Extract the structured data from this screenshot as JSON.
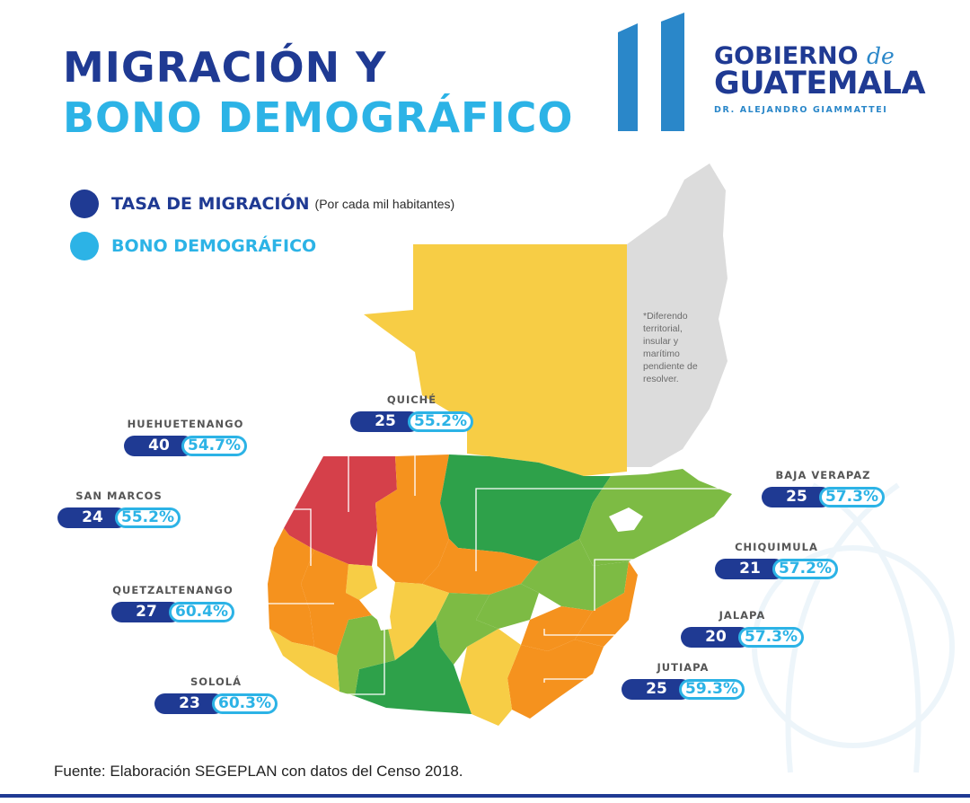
{
  "title": {
    "line1": "MIGRACIÓN Y",
    "line2": "BONO DEMOGRÁFICO"
  },
  "logo": {
    "gobierno": "GOBIERNO",
    "de": "de",
    "guatemala": "GUATEMALA",
    "president": "DR. ALEJANDRO GIAMMATTEI"
  },
  "legend": {
    "migration_label": "TASA DE MIGRACIÓN",
    "migration_sub": "(Por cada mil habitantes)",
    "bonus_label": "BONO DEMOGRÁFICO",
    "migration_color": "#1f3a93",
    "bonus_color": "#2cb3e6"
  },
  "note": "*Diferendo territorial, insular y marítimo pendiente de resolver.",
  "departments": [
    {
      "name": "QUICHÉ",
      "migration": "25",
      "bonus": "55.2%"
    },
    {
      "name": "HUEHUETENANGO",
      "migration": "40",
      "bonus": "54.7%"
    },
    {
      "name": "SAN MARCOS",
      "migration": "24",
      "bonus": "55.2%"
    },
    {
      "name": "QUETZALTENANGO",
      "migration": "27",
      "bonus": "60.4%"
    },
    {
      "name": "SOLOLÁ",
      "migration": "23",
      "bonus": "60.3%"
    },
    {
      "name": "BAJA VERAPAZ",
      "migration": "25",
      "bonus": "57.3%"
    },
    {
      "name": "CHIQUIMULA",
      "migration": "21",
      "bonus": "57.2%"
    },
    {
      "name": "JALAPA",
      "migration": "20",
      "bonus": "57.3%"
    },
    {
      "name": "JUTIAPA",
      "migration": "25",
      "bonus": "59.3%"
    }
  ],
  "source": "Fuente: Elaboración SEGEPLAN con datos del Censo 2018."
}
